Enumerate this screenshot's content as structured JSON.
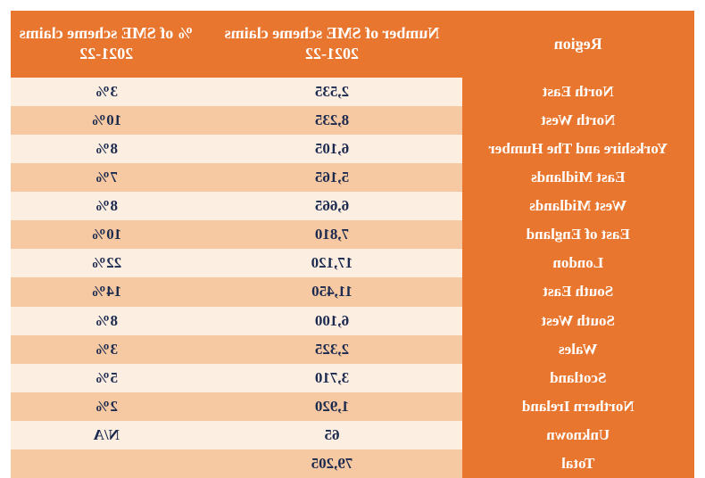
{
  "colors": {
    "header_bg": "#e9762f",
    "region_bg": "#e9762f",
    "row_light_bg": "#fdeee2",
    "row_dark_bg": "#f7c9a3",
    "text_light": "#ffffff",
    "text_data": "#1b2a4e"
  },
  "table": {
    "columns": [
      {
        "key": "region",
        "label": "Region"
      },
      {
        "key": "number",
        "label": "Number of SME scheme claims 2021-22"
      },
      {
        "key": "percent",
        "label": "% of SME scheme claims 2021-22"
      }
    ],
    "rows": [
      {
        "region": "North East",
        "number": "2,535",
        "percent": "3%"
      },
      {
        "region": "North West",
        "number": "8,235",
        "percent": "10%"
      },
      {
        "region": "Yorkshire and The Humber",
        "number": "6,105",
        "percent": "8%"
      },
      {
        "region": "East Midlands",
        "number": "5,165",
        "percent": "7%"
      },
      {
        "region": "West Midlands",
        "number": "6,665",
        "percent": "8%"
      },
      {
        "region": "East of England",
        "number": "7,810",
        "percent": "10%"
      },
      {
        "region": "London",
        "number": "17,120",
        "percent": "22%"
      },
      {
        "region": "South East",
        "number": "11,450",
        "percent": "14%"
      },
      {
        "region": "South West",
        "number": "6,100",
        "percent": "8%"
      },
      {
        "region": "Wales",
        "number": "2,325",
        "percent": "3%"
      },
      {
        "region": "Scotland",
        "number": "3,710",
        "percent": "5%"
      },
      {
        "region": "Northern Ireland",
        "number": "1,920",
        "percent": "2%"
      },
      {
        "region": "Unknown",
        "number": "65",
        "percent": "N/A"
      },
      {
        "region": "Total",
        "number": "79,205",
        "percent": ""
      }
    ]
  }
}
